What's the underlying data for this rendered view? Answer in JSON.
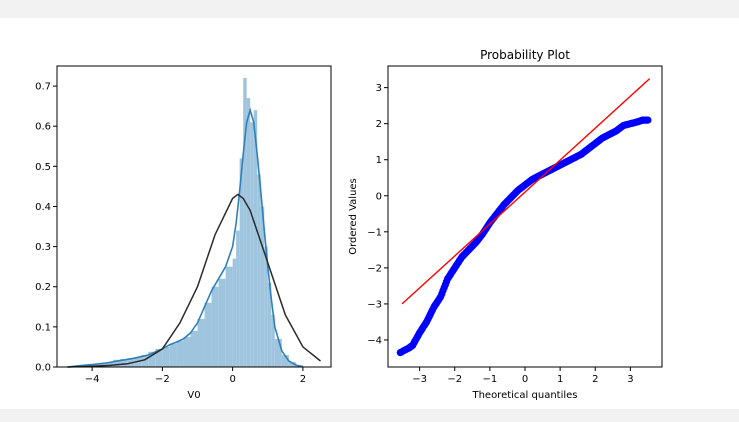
{
  "colors": {
    "hist_fill": "#9fc4de",
    "kde": "#2f80b8",
    "normal_fit": "#2b2b2b",
    "qq_points": "#0000ff",
    "qq_line": "#ff0000",
    "axes": "#000000"
  },
  "chart_data": [
    {
      "type": "bar",
      "subtype": "histogram_with_kde_and_normal_fit",
      "title": "",
      "xlabel": "V0",
      "ylabel": "",
      "xlim": [
        -5.0,
        2.8
      ],
      "ylim": [
        0,
        0.75
      ],
      "xticks": [
        -4,
        -2,
        0,
        2
      ],
      "xtick_labels": [
        "−4",
        "−2",
        "0",
        "2"
      ],
      "yticks": [
        0.0,
        0.1,
        0.2,
        0.3,
        0.4,
        0.5,
        0.6,
        0.7
      ],
      "ytick_labels": [
        "0.0",
        "0.1",
        "0.2",
        "0.3",
        "0.4",
        "0.5",
        "0.6",
        "0.7"
      ],
      "grid": false,
      "bins": [
        [
          -4.6,
          -4.4,
          0.002
        ],
        [
          -4.4,
          -4.2,
          0.004
        ],
        [
          -4.2,
          -4.0,
          0.003
        ],
        [
          -4.0,
          -3.8,
          0.006
        ],
        [
          -3.8,
          -3.6,
          0.008
        ],
        [
          -3.6,
          -3.4,
          0.012
        ],
        [
          -3.4,
          -3.2,
          0.018
        ],
        [
          -3.2,
          -3.0,
          0.02
        ],
        [
          -3.0,
          -2.8,
          0.022
        ],
        [
          -2.8,
          -2.6,
          0.025
        ],
        [
          -2.6,
          -2.4,
          0.03
        ],
        [
          -2.4,
          -2.2,
          0.038
        ],
        [
          -2.2,
          -2.0,
          0.045
        ],
        [
          -2.0,
          -1.8,
          0.05
        ],
        [
          -1.8,
          -1.6,
          0.058
        ],
        [
          -1.6,
          -1.4,
          0.065
        ],
        [
          -1.4,
          -1.2,
          0.075
        ],
        [
          -1.2,
          -1.0,
          0.09
        ],
        [
          -1.0,
          -0.8,
          0.12
        ],
        [
          -0.8,
          -0.6,
          0.16
        ],
        [
          -0.6,
          -0.4,
          0.2
        ],
        [
          -0.4,
          -0.2,
          0.22
        ],
        [
          -0.2,
          0.0,
          0.25
        ],
        [
          0.0,
          0.1,
          0.27
        ],
        [
          0.1,
          0.2,
          0.34
        ],
        [
          0.2,
          0.3,
          0.52
        ],
        [
          0.3,
          0.4,
          0.72
        ],
        [
          0.4,
          0.5,
          0.67
        ],
        [
          0.5,
          0.6,
          0.61
        ],
        [
          0.6,
          0.7,
          0.64
        ],
        [
          0.7,
          0.8,
          0.48
        ],
        [
          0.8,
          0.9,
          0.4
        ],
        [
          0.9,
          1.0,
          0.3
        ],
        [
          1.0,
          1.1,
          0.21
        ],
        [
          1.1,
          1.2,
          0.13
        ],
        [
          1.2,
          1.4,
          0.07
        ],
        [
          1.4,
          1.6,
          0.03
        ],
        [
          1.6,
          1.8,
          0.012
        ],
        [
          1.8,
          2.0,
          0.005
        ]
      ],
      "series": [
        {
          "kind": "kde",
          "x": [
            -4.7,
            -4.4,
            -4.0,
            -3.6,
            -3.2,
            -2.8,
            -2.4,
            -2.0,
            -1.8,
            -1.6,
            -1.4,
            -1.2,
            -1.0,
            -0.8,
            -0.6,
            -0.4,
            -0.2,
            0.0,
            0.1,
            0.2,
            0.3,
            0.4,
            0.5,
            0.6,
            0.7,
            0.8,
            0.9,
            1.0,
            1.1,
            1.2,
            1.4,
            1.6,
            1.8,
            2.0
          ],
          "y": [
            0.0,
            0.003,
            0.006,
            0.01,
            0.016,
            0.022,
            0.03,
            0.045,
            0.055,
            0.062,
            0.07,
            0.085,
            0.11,
            0.15,
            0.19,
            0.22,
            0.25,
            0.3,
            0.36,
            0.44,
            0.53,
            0.61,
            0.64,
            0.61,
            0.53,
            0.44,
            0.34,
            0.25,
            0.17,
            0.1,
            0.04,
            0.015,
            0.005,
            0.0
          ]
        },
        {
          "kind": "normal_fit",
          "x": [
            -4.7,
            -4.0,
            -3.5,
            -3.0,
            -2.5,
            -2.0,
            -1.5,
            -1.0,
            -0.5,
            0.0,
            0.15,
            0.3,
            0.5,
            1.0,
            1.5,
            2.0,
            2.5
          ],
          "y": [
            0.0,
            0.002,
            0.004,
            0.008,
            0.018,
            0.045,
            0.11,
            0.2,
            0.33,
            0.42,
            0.43,
            0.42,
            0.39,
            0.26,
            0.13,
            0.05,
            0.015
          ]
        }
      ]
    },
    {
      "type": "scatter",
      "subtype": "probability_plot",
      "title": "Probability Plot",
      "xlabel": "Theoretical quantiles",
      "ylabel": "Ordered Values",
      "xlim": [
        -3.9,
        3.9
      ],
      "ylim": [
        -4.75,
        3.6
      ],
      "xticks": [
        -3,
        -2,
        -1,
        0,
        1,
        2,
        3
      ],
      "xtick_labels": [
        "−3",
        "−2",
        "−1",
        "0",
        "1",
        "2",
        "3"
      ],
      "yticks": [
        -4,
        -3,
        -2,
        -1,
        0,
        1,
        2,
        3
      ],
      "ytick_labels": [
        "−4",
        "−3",
        "−2",
        "−1",
        "0",
        "1",
        "2",
        "3"
      ],
      "grid": false,
      "points_curve": {
        "x": [
          -3.55,
          -3.3,
          -3.2,
          -3.0,
          -2.8,
          -2.6,
          -2.4,
          -2.2,
          -2.0,
          -1.8,
          -1.6,
          -1.4,
          -1.2,
          -1.0,
          -0.8,
          -0.6,
          -0.4,
          -0.2,
          0.0,
          0.2,
          0.4,
          0.6,
          0.8,
          1.0,
          1.2,
          1.4,
          1.6,
          1.8,
          2.0,
          2.2,
          2.4,
          2.6,
          2.8,
          3.0,
          3.2,
          3.35,
          3.5
        ],
        "y": [
          -4.35,
          -4.22,
          -4.15,
          -3.8,
          -3.5,
          -3.1,
          -2.8,
          -2.3,
          -2.0,
          -1.7,
          -1.5,
          -1.3,
          -1.05,
          -0.75,
          -0.5,
          -0.25,
          -0.05,
          0.15,
          0.3,
          0.45,
          0.55,
          0.65,
          0.75,
          0.85,
          0.95,
          1.05,
          1.15,
          1.3,
          1.45,
          1.6,
          1.7,
          1.8,
          1.95,
          2.0,
          2.05,
          2.1,
          2.1
        ]
      },
      "fit_line": {
        "x": [
          -3.5,
          3.55
        ],
        "y": [
          -3.0,
          3.25
        ]
      }
    }
  ]
}
